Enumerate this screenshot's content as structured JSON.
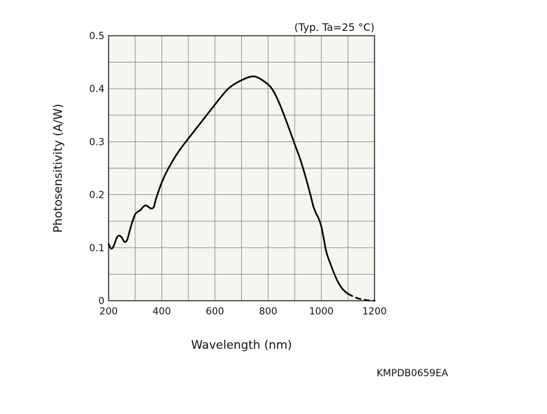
{
  "chart_data": {
    "type": "line",
    "title": "",
    "annotation": "(Typ. Ta=25 °C)",
    "xlabel": "Wavelength (nm)",
    "ylabel": "Photosensitivity (A/W)",
    "xlim": [
      200,
      1200
    ],
    "ylim": [
      0,
      0.5
    ],
    "x_ticks": [
      200,
      400,
      600,
      800,
      1000,
      1200
    ],
    "y_ticks": [
      0,
      0.1,
      0.2,
      0.3,
      0.4,
      0.5
    ],
    "y_tick_labels": [
      "0",
      "0.1",
      "0.2",
      "0.3",
      "0.4",
      "0.5"
    ],
    "grid": true,
    "colors": {
      "plot_background": "#f6f5ef",
      "grid": "#888888",
      "line": "#000000"
    },
    "series": [
      {
        "style": "solid",
        "points": [
          [
            200,
            0.107
          ],
          [
            210,
            0.098
          ],
          [
            220,
            0.104
          ],
          [
            230,
            0.118
          ],
          [
            240,
            0.123
          ],
          [
            250,
            0.119
          ],
          [
            260,
            0.111
          ],
          [
            270,
            0.115
          ],
          [
            280,
            0.133
          ],
          [
            290,
            0.15
          ],
          [
            300,
            0.163
          ],
          [
            310,
            0.168
          ],
          [
            320,
            0.171
          ],
          [
            330,
            0.177
          ],
          [
            340,
            0.18
          ],
          [
            350,
            0.177
          ],
          [
            360,
            0.174
          ],
          [
            370,
            0.177
          ],
          [
            380,
            0.195
          ],
          [
            400,
            0.223
          ],
          [
            420,
            0.245
          ],
          [
            440,
            0.263
          ],
          [
            460,
            0.279
          ],
          [
            480,
            0.293
          ],
          [
            500,
            0.306
          ],
          [
            550,
            0.338
          ],
          [
            600,
            0.37
          ],
          [
            650,
            0.4
          ],
          [
            700,
            0.416
          ],
          [
            750,
            0.423
          ],
          [
            800,
            0.408
          ],
          [
            820,
            0.395
          ],
          [
            840,
            0.375
          ],
          [
            860,
            0.35
          ],
          [
            880,
            0.323
          ],
          [
            900,
            0.295
          ],
          [
            920,
            0.268
          ],
          [
            940,
            0.235
          ],
          [
            960,
            0.198
          ],
          [
            970,
            0.178
          ],
          [
            980,
            0.165
          ],
          [
            990,
            0.155
          ],
          [
            1000,
            0.14
          ],
          [
            1010,
            0.115
          ],
          [
            1020,
            0.09
          ],
          [
            1040,
            0.062
          ],
          [
            1060,
            0.038
          ],
          [
            1080,
            0.022
          ],
          [
            1100,
            0.013
          ]
        ]
      },
      {
        "style": "dashed",
        "points": [
          [
            1100,
            0.013
          ],
          [
            1120,
            0.008
          ],
          [
            1140,
            0.004
          ],
          [
            1160,
            0.002
          ],
          [
            1180,
            0.0005
          ],
          [
            1200,
            0.0
          ]
        ]
      }
    ]
  },
  "document_code": "KMPDB0659EA"
}
